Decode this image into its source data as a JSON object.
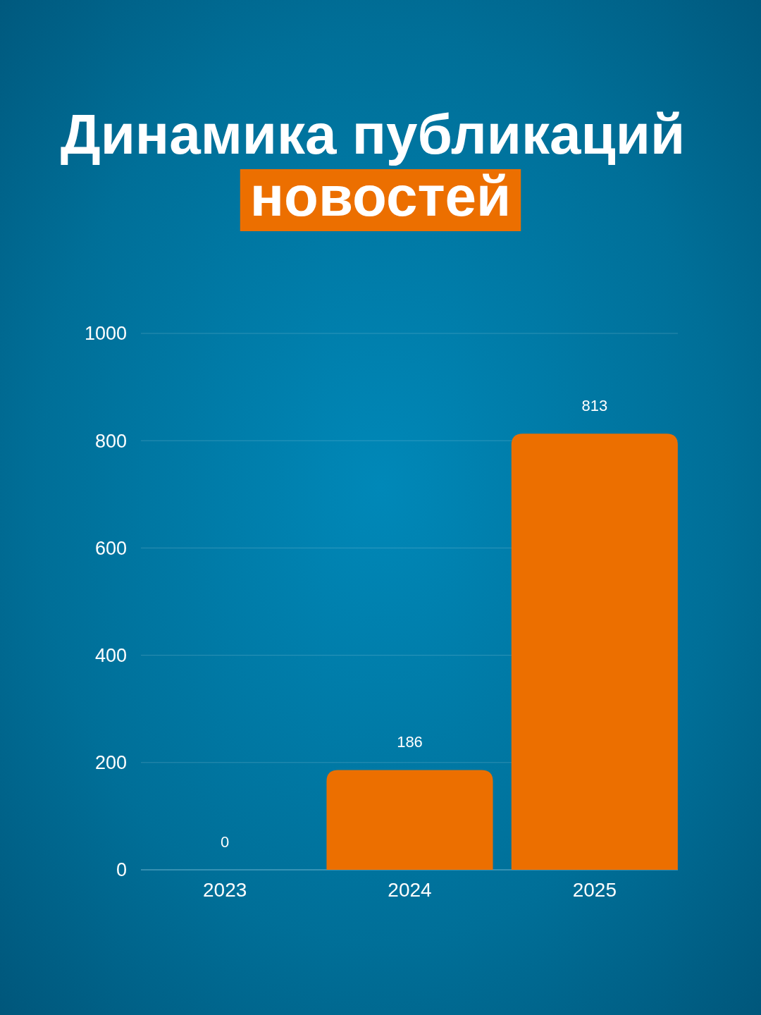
{
  "chart_data": {
    "type": "bar",
    "title": "Динамика публикаций новостей",
    "categories": [
      "2023",
      "2024",
      "2025"
    ],
    "values": [
      0,
      186,
      813
    ],
    "color": "#ec6f00",
    "ylim": [
      0,
      1000
    ],
    "yticks": [
      0,
      200,
      400,
      600,
      800,
      1000
    ],
    "grid": "y",
    "data_labels": true
  }
}
